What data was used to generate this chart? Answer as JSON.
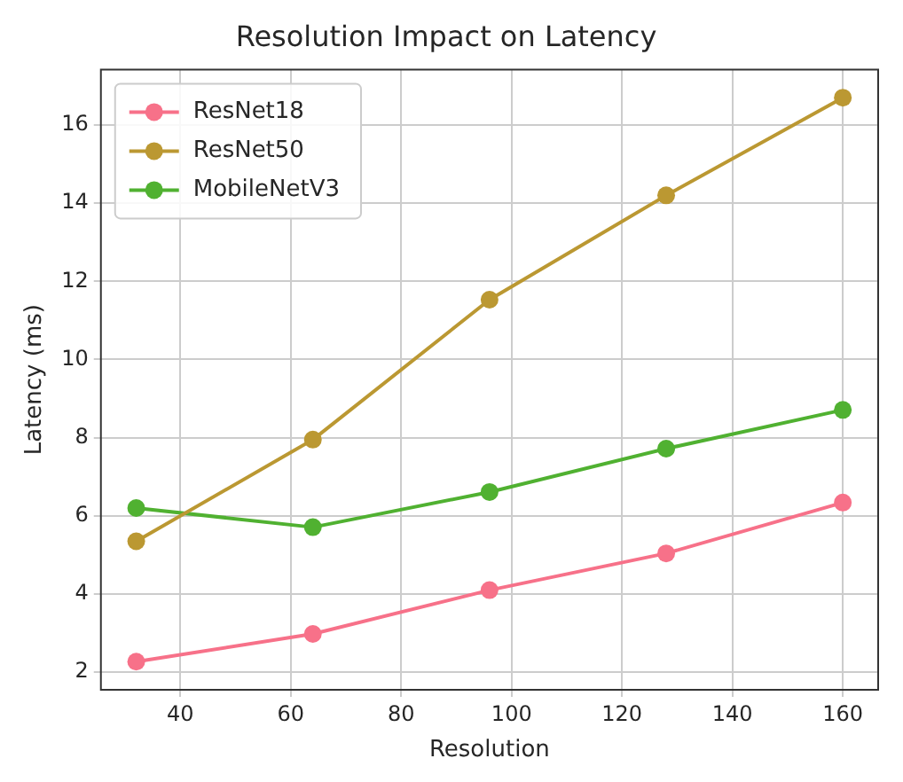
{
  "chart_data": {
    "type": "line",
    "title": "Resolution Impact on Latency",
    "xlabel": "Resolution",
    "ylabel": "Latency (ms)",
    "x": [
      32,
      64,
      96,
      128,
      160
    ],
    "series": [
      {
        "name": "ResNet18",
        "color": "#f77189",
        "values": [
          2.27,
          2.98,
          4.1,
          5.04,
          6.34
        ]
      },
      {
        "name": "ResNet50",
        "color": "#bb9832",
        "values": [
          5.35,
          7.95,
          11.53,
          14.2,
          16.7
        ]
      },
      {
        "name": "MobileNetV3",
        "color": "#50b131",
        "values": [
          6.2,
          5.71,
          6.61,
          7.72,
          8.71
        ]
      }
    ],
    "xlim": [
      25.6,
      166.4
    ],
    "xticks": [
      40,
      60,
      80,
      100,
      120,
      140,
      160
    ],
    "ylim": [
      1.55,
      17.42
    ],
    "yticks": [
      2,
      4,
      6,
      8,
      10,
      12,
      14,
      16
    ],
    "grid": true,
    "legend": "top left",
    "marker": "circle",
    "line_style": "solid"
  }
}
